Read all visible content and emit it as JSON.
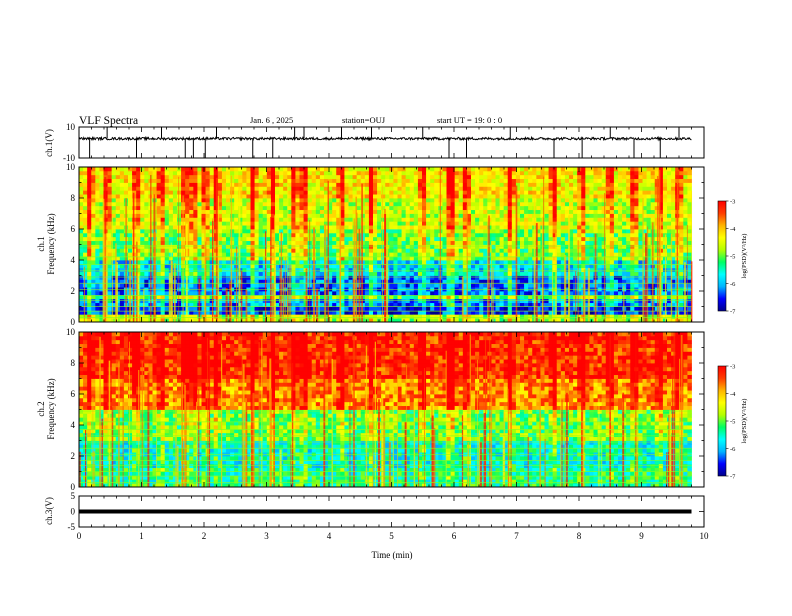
{
  "header": {
    "title": "VLF Spectra",
    "date": "Jan. 6 , 2025",
    "station": "station=OUJ",
    "start": "start UT =  19: 0  : 0"
  },
  "chart_data": [
    {
      "type": "line",
      "panel": "ch1-waveform",
      "ylabel": "ch.1(V)",
      "ylim": [
        -10,
        10
      ],
      "yticks": [
        "10",
        "-10"
      ],
      "xlim": [
        0,
        10
      ],
      "baseline": 0,
      "spike_times": [
        0.17,
        0.45,
        0.92,
        1.32,
        1.7,
        1.83,
        2.02,
        2.2,
        2.78,
        3.1,
        3.45,
        3.6,
        4.2,
        4.68,
        5.5,
        5.92,
        6.2,
        6.9,
        7.6,
        8.05,
        8.5,
        8.88,
        9.3,
        9.6
      ]
    },
    {
      "type": "heatmap",
      "panel": "ch1-spectrogram",
      "ylabel": "ch.1\nFrequency (kHz)",
      "ylim": [
        0,
        10
      ],
      "yticks": [
        "0",
        "2",
        "4",
        "6",
        "8",
        "10"
      ],
      "xlim": [
        0,
        9.8
      ],
      "colorbar": {
        "label": "log(PSD)(V²/Hz)",
        "range": [
          -7,
          -3
        ],
        "ticks": [
          "-3",
          "-4",
          "-5",
          "-6",
          "-7"
        ]
      },
      "bands": [
        {
          "f": [
            0,
            0.4
          ],
          "level": -4.8
        },
        {
          "f": [
            0.4,
            1.0
          ],
          "level": -6.6
        },
        {
          "f": [
            1.0,
            1.5
          ],
          "level": -6.2
        },
        {
          "f": [
            1.5,
            1.8
          ],
          "level": -5.0
        },
        {
          "f": [
            1.8,
            3.0
          ],
          "level": -6.3
        },
        {
          "f": [
            3.0,
            4.0
          ],
          "level": -5.8
        },
        {
          "f": [
            4.0,
            6.0
          ],
          "level": -5.0
        },
        {
          "f": [
            6.0,
            8.0
          ],
          "level": -4.6
        },
        {
          "f": [
            8.0,
            10.0
          ],
          "level": -4.3
        }
      ]
    },
    {
      "type": "heatmap",
      "panel": "ch2-spectrogram",
      "ylabel": "ch.2\nFrequency (kHz)",
      "ylim": [
        0,
        10
      ],
      "yticks": [
        "0",
        "2",
        "4",
        "6",
        "8",
        "10"
      ],
      "xlim": [
        0,
        9.8
      ],
      "colorbar": {
        "label": "log(PSD)(V²/Hz)",
        "range": [
          -7,
          -3
        ],
        "ticks": [
          "-3",
          "-4",
          "-5",
          "-6",
          "-7"
        ]
      },
      "bands": [
        {
          "f": [
            0,
            1.2
          ],
          "level": -5.4
        },
        {
          "f": [
            1.2,
            3.0
          ],
          "level": -5.6
        },
        {
          "f": [
            3.0,
            5.0
          ],
          "level": -5.0
        },
        {
          "f": [
            5.0,
            7.0
          ],
          "level": -3.8
        },
        {
          "f": [
            7.0,
            10.0
          ],
          "level": -3.3
        }
      ]
    },
    {
      "type": "line",
      "panel": "ch3-waveform",
      "ylabel": "ch.3(V)",
      "ylim": [
        -5,
        5
      ],
      "yticks": [
        "5",
        "0",
        "-5"
      ],
      "xlim": [
        0,
        10
      ],
      "values": [
        {
          "t": 0,
          "v": 0
        },
        {
          "t": 9.8,
          "v": 0
        }
      ],
      "xlabel": "Time (min)",
      "xticks": [
        "0",
        "1",
        "2",
        "3",
        "4",
        "5",
        "6",
        "7",
        "8",
        "9",
        "10"
      ]
    }
  ],
  "colors": {
    "colormap": [
      "#00008b",
      "#0000ff",
      "#00b4ff",
      "#00ffff",
      "#00ff64",
      "#b4ff00",
      "#ffff00",
      "#ffb400",
      "#ff3c00",
      "#ff0000",
      "#ffffff"
    ],
    "trace": "#000000"
  }
}
